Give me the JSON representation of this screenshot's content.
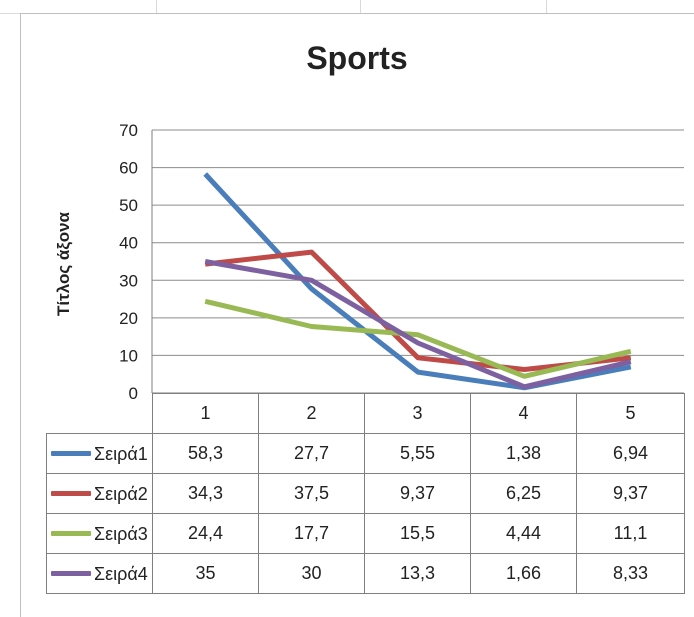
{
  "chart_data": {
    "type": "line",
    "title": "Sports",
    "ylabel": "Τίτλος άξονα",
    "xlabel": "",
    "categories": [
      "1",
      "2",
      "3",
      "4",
      "5"
    ],
    "ylim": [
      0,
      70
    ],
    "yticks": [
      0,
      10,
      20,
      30,
      40,
      50,
      60,
      70
    ],
    "grid": true,
    "legend": "data-table",
    "series": [
      {
        "name": "Σειρά1",
        "color": "#4a7ebb",
        "values": [
          58.3,
          27.7,
          5.55,
          1.38,
          6.94
        ],
        "labels": [
          "58,3",
          "27,7",
          "5,55",
          "1,38",
          "6,94"
        ]
      },
      {
        "name": "Σειρά2",
        "color": "#be4b48",
        "values": [
          34.3,
          37.5,
          9.37,
          6.25,
          9.37
        ],
        "labels": [
          "34,3",
          "37,5",
          "9,37",
          "6,25",
          "9,37"
        ]
      },
      {
        "name": "Σειρά3",
        "color": "#98b954",
        "values": [
          24.4,
          17.7,
          15.5,
          4.44,
          11.1
        ],
        "labels": [
          "24,4",
          "17,7",
          "15,5",
          "4,44",
          "11,1"
        ]
      },
      {
        "name": "Σειρά4",
        "color": "#7d60a0",
        "values": [
          35,
          30,
          13.3,
          1.66,
          8.33
        ],
        "labels": [
          "35",
          "30",
          "13,3",
          "1,66",
          "8,33"
        ]
      }
    ]
  }
}
